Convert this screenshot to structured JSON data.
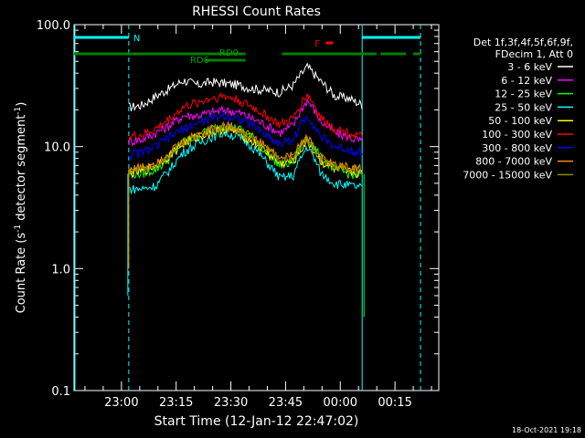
{
  "chart_data": {
    "type": "line",
    "title": "RHESSI Count Rates",
    "xlabel": "Start Time (12-Jan-12 22:47:02)",
    "ylabel": "Count Rate (s^-1 detector segment^-1)",
    "ylabel_parts": [
      "Count Rate (s",
      "-1",
      " detector segment",
      "-1",
      ")"
    ],
    "yscale": "log",
    "ylim": [
      0.1,
      100.0
    ],
    "xlim": [
      "22:47:02",
      "00:27:00"
    ],
    "x_ticks": [
      "23:00",
      "23:15",
      "23:30",
      "23:45",
      "00:00",
      "00:15"
    ],
    "y_ticks": [
      "0.1",
      "1.0",
      "10.0",
      "100.0"
    ],
    "legend_header": [
      "Det 1f,3f,4f,5f,6f,9f,",
      "FDecim 1, Att 0"
    ],
    "legend_position": "right",
    "timestamp": "18-Oct-2021 19:18",
    "flag_labels": {
      "N": "N",
      "RD0": "RD0",
      "RD6": "RD6",
      "F": "F"
    },
    "flags": {
      "night": [
        [
          "22:47",
          "23:02"
        ],
        [
          "00:06",
          "00:22"
        ]
      ],
      "saa_dashed": [
        "23:02",
        "00:22"
      ],
      "rd0": [
        [
          "22:47",
          "23:34"
        ],
        [
          "23:44",
          "00:10"
        ],
        [
          "00:11",
          "00:18"
        ],
        [
          "00:20",
          "00:22"
        ]
      ],
      "rd6": [
        [
          "23:23",
          "23:34"
        ]
      ],
      "flare": [
        "23:56",
        "23:58"
      ]
    },
    "data_window": [
      "23:02",
      "00:06"
    ],
    "series": [
      {
        "name": "3 - 6 keV",
        "color": "#ffffff",
        "values": [
          21,
          22,
          26,
          30,
          35,
          32,
          34,
          33,
          32,
          30,
          29,
          28,
          32,
          45,
          34,
          26,
          25,
          22
        ]
      },
      {
        "name": "6 - 12 keV",
        "color": "#ff00ff",
        "values": [
          11,
          11.5,
          13,
          15,
          18,
          18,
          19,
          20,
          19,
          17,
          15,
          13,
          15,
          24,
          16,
          13,
          12,
          11
        ]
      },
      {
        "name": "12 - 25 keV",
        "color": "#00ff00",
        "values": [
          6,
          6,
          6.5,
          8,
          11,
          12,
          14,
          15,
          14,
          12,
          9,
          7,
          7.5,
          12,
          8,
          6.5,
          6,
          5.8
        ]
      },
      {
        "name": "25 - 50 keV",
        "color": "#00ffff",
        "values": [
          4.5,
          4.5,
          4.8,
          6.5,
          9,
          10.5,
          12,
          13,
          12,
          10,
          7.5,
          5.5,
          5.8,
          10,
          6,
          5,
          4.8,
          4.6
        ]
      },
      {
        "name": "50 - 100 keV",
        "color": "#ffff00",
        "values": [
          6,
          6.3,
          7,
          8.5,
          10.5,
          12,
          13,
          14,
          13,
          11,
          9,
          7.2,
          7.5,
          11,
          7.5,
          6.5,
          6.2,
          6
        ]
      },
      {
        "name": "100 - 300 keV",
        "color": "#ff0000",
        "values": [
          12,
          12.5,
          14,
          17,
          21,
          23,
          25,
          26,
          24,
          21,
          18,
          15,
          17,
          27,
          17,
          14,
          13,
          12
        ]
      },
      {
        "name": "300 - 800 keV",
        "color": "#0000ff",
        "values": [
          8.5,
          9,
          10,
          12,
          14,
          15.5,
          17,
          18,
          17,
          15,
          12.5,
          10.5,
          11.5,
          18,
          12,
          10,
          9.5,
          9
        ]
      },
      {
        "name": "800 - 7000 keV",
        "color": "#ff8c00",
        "values": [
          6.5,
          6.8,
          7.5,
          9,
          11,
          12.5,
          14,
          15,
          14,
          12,
          10,
          8,
          8.5,
          12,
          8,
          7,
          6.8,
          6.5
        ]
      },
      {
        "name": "7000 - 15000 keV",
        "color": "#8b8b00",
        "values": [
          6.3,
          6.5,
          7.2,
          8.7,
          10.8,
          12.2,
          13.6,
          14.5,
          13.5,
          11.7,
          9.7,
          7.8,
          8.2,
          11.6,
          7.8,
          6.8,
          6.6,
          6.3
        ]
      }
    ]
  }
}
